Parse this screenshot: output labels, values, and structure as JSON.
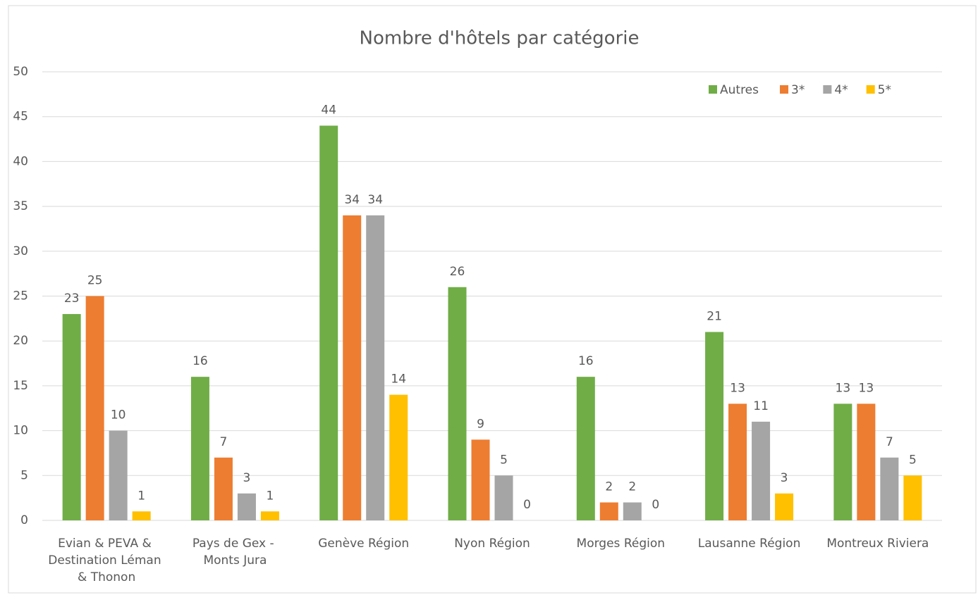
{
  "chart_data": {
    "type": "bar",
    "title": "Nombre d'hôtels par catégorie",
    "categories": [
      "Evian & PEVA & Destination Léman & Thonon",
      "Pays de Gex - Monts Jura",
      "Genève Région",
      "Nyon Région",
      "Morges Région",
      "Lausanne Région",
      "Montreux Riviera"
    ],
    "series": [
      {
        "name": "Autres",
        "color": "#70ad47",
        "values": [
          23,
          16,
          44,
          26,
          16,
          21,
          13
        ]
      },
      {
        "name": "3*",
        "color": "#ed7d31",
        "values": [
          25,
          7,
          34,
          9,
          2,
          13,
          13
        ]
      },
      {
        "name": "4*",
        "color": "#a5a5a5",
        "values": [
          10,
          3,
          34,
          5,
          2,
          11,
          7
        ]
      },
      {
        "name": "5*",
        "color": "#ffc000",
        "values": [
          1,
          1,
          14,
          0,
          0,
          3,
          5
        ]
      }
    ],
    "ylim": [
      0,
      50
    ],
    "yticks": [
      0,
      5,
      10,
      15,
      20,
      25,
      30,
      35,
      40,
      45,
      50
    ],
    "grid": true,
    "legend": "top-right"
  }
}
